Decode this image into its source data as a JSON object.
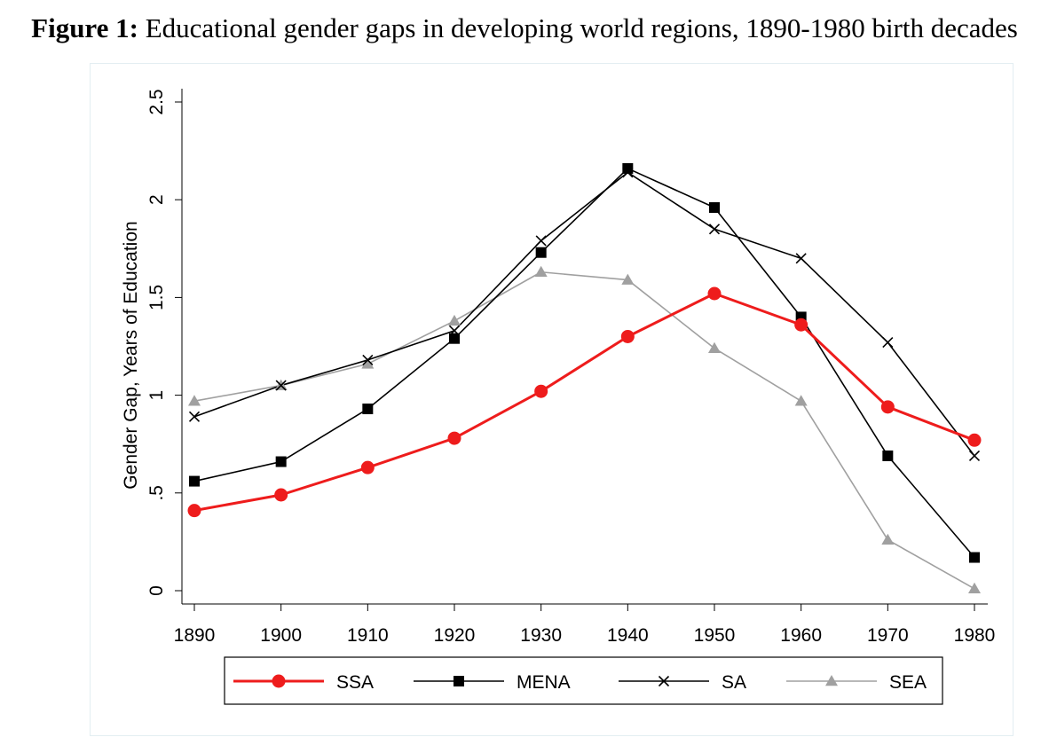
{
  "figure": {
    "label": "Figure 1:",
    "caption": "Educational gender gaps in developing world regions, 1890-1980 birth decades"
  },
  "chart_data": {
    "type": "line",
    "title": "Educational gender gaps in developing world regions, 1890-1980 birth decades",
    "xlabel": "",
    "ylabel": "Gender Gap, Years of Education",
    "x": [
      1890,
      1900,
      1910,
      1920,
      1930,
      1940,
      1950,
      1960,
      1970,
      1980
    ],
    "xticks": [
      "1890",
      "1900",
      "1910",
      "1920",
      "1930",
      "1940",
      "1950",
      "1960",
      "1970",
      "1980"
    ],
    "yticks": [
      {
        "value": 0,
        "label": "0"
      },
      {
        "value": 0.5,
        "label": ".5"
      },
      {
        "value": 1,
        "label": "1"
      },
      {
        "value": 1.5,
        "label": "1.5"
      },
      {
        "value": 2,
        "label": "2"
      },
      {
        "value": 2.5,
        "label": "2.5"
      }
    ],
    "ylim": [
      0,
      2.5
    ],
    "grid": false,
    "legend_position": "bottom",
    "series": [
      {
        "name": "SSA",
        "color": "#ee1c1c",
        "marker": "circle",
        "values": [
          0.41,
          0.49,
          0.63,
          0.78,
          1.02,
          1.3,
          1.52,
          1.36,
          0.94,
          0.77
        ]
      },
      {
        "name": "MENA",
        "color": "#000000",
        "marker": "square",
        "values": [
          0.56,
          0.66,
          0.93,
          1.29,
          1.73,
          2.16,
          1.96,
          1.4,
          0.69,
          0.17
        ]
      },
      {
        "name": "SA",
        "color": "#000000",
        "marker": "x",
        "values": [
          0.89,
          1.05,
          1.18,
          1.33,
          1.79,
          2.14,
          1.85,
          1.7,
          1.27,
          0.69
        ]
      },
      {
        "name": "SEA",
        "color": "#a0a0a0",
        "marker": "triangle",
        "values": [
          0.97,
          1.05,
          1.16,
          1.38,
          1.63,
          1.59,
          1.24,
          0.97,
          0.26,
          0.01
        ]
      }
    ]
  }
}
